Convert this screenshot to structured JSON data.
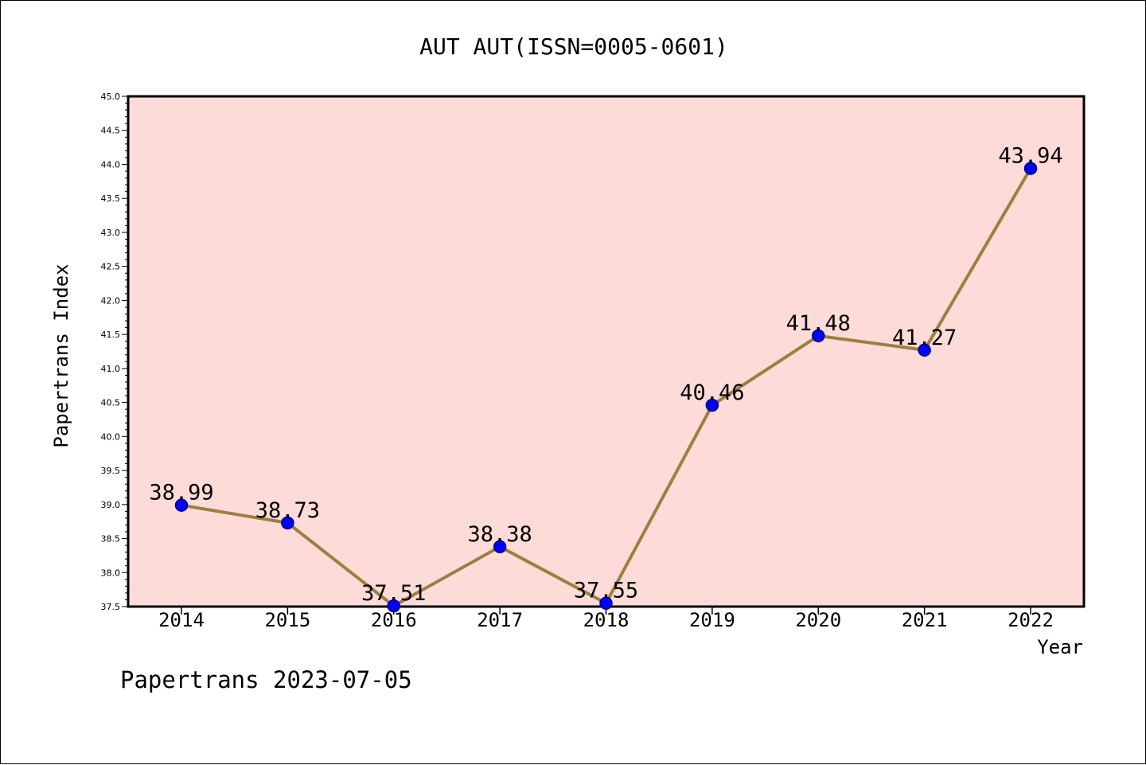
{
  "title": "AUT AUT(ISSN=0005-0601)",
  "footer": "Papertrans 2023-07-05",
  "colors": {
    "plot_background": "#fddbd8",
    "line": "#9b8040",
    "marker": "#0000ff",
    "marker_edge": "#00008b"
  },
  "chart_data": {
    "type": "line",
    "title": "AUT AUT(ISSN=0005-0601)",
    "xlabel": "Year",
    "ylabel": "Papertrans Index",
    "categories": [
      "2014",
      "2015",
      "2016",
      "2017",
      "2018",
      "2019",
      "2020",
      "2021",
      "2022"
    ],
    "values": [
      38.99,
      38.73,
      37.51,
      38.38,
      37.55,
      40.46,
      41.48,
      41.27,
      43.94
    ],
    "data_labels": [
      "38.99",
      "38.73",
      "37.51",
      "38.38",
      "37.55",
      "40.46",
      "41.48",
      "41.27",
      "43.94"
    ],
    "ylim": [
      37.5,
      45.0
    ],
    "yticks": [
      "37.5",
      "38.0",
      "38.5",
      "39.0",
      "39.5",
      "40.0",
      "40.5",
      "41.0",
      "41.5",
      "42.0",
      "42.5",
      "43.0",
      "43.5",
      "44.0",
      "44.5",
      "45.0"
    ],
    "grid": false,
    "legend": "none"
  }
}
